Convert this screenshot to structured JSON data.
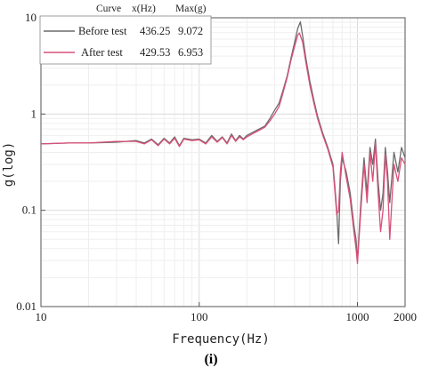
{
  "caption": "(i)",
  "chart_data": {
    "type": "line",
    "title": "",
    "xlabel": "Frequency(Hz)",
    "ylabel": "g(log)",
    "xscale": "log",
    "yscale": "log",
    "xlim": [
      10,
      2000
    ],
    "ylim": [
      0.01,
      10
    ],
    "grid": true,
    "x_ticks": [
      10,
      100,
      1000,
      2000
    ],
    "x_tick_labels": [
      "10",
      "100",
      "1000",
      "2000"
    ],
    "y_ticks": [
      0.01,
      0.1,
      1,
      10
    ],
    "y_tick_labels": [
      "0.01",
      "0.1",
      "1",
      "10"
    ],
    "legend": {
      "placement": "top-left",
      "header": [
        "Curve",
        "x(Hz)",
        "Max(g)"
      ],
      "entries": [
        {
          "label": "Before test",
          "x": "436.25",
          "max": "9.072"
        },
        {
          "label": "After test",
          "x": "429.53",
          "max": "6.953"
        }
      ]
    },
    "series": [
      {
        "name": "Before test",
        "color": "#6b6b6b",
        "x": [
          10,
          15,
          20,
          30,
          40,
          45,
          50,
          55,
          60,
          65,
          70,
          75,
          80,
          90,
          100,
          110,
          120,
          130,
          140,
          150,
          160,
          170,
          180,
          190,
          200,
          220,
          240,
          260,
          280,
          300,
          320,
          340,
          360,
          380,
          400,
          420,
          436,
          450,
          470,
          500,
          530,
          560,
          600,
          650,
          700,
          720,
          740,
          760,
          780,
          800,
          850,
          900,
          950,
          980,
          1000,
          1050,
          1100,
          1150,
          1200,
          1250,
          1300,
          1350,
          1400,
          1450,
          1500,
          1550,
          1600,
          1700,
          1800,
          1900,
          2000
        ],
        "y": [
          0.49,
          0.5,
          0.5,
          0.51,
          0.53,
          0.5,
          0.55,
          0.48,
          0.56,
          0.5,
          0.58,
          0.47,
          0.56,
          0.54,
          0.55,
          0.5,
          0.6,
          0.52,
          0.58,
          0.5,
          0.62,
          0.53,
          0.6,
          0.55,
          0.6,
          0.65,
          0.7,
          0.75,
          0.9,
          1.1,
          1.3,
          1.8,
          2.5,
          3.8,
          5.5,
          7.8,
          9.07,
          6.5,
          4.0,
          2.2,
          1.4,
          0.95,
          0.65,
          0.45,
          0.3,
          0.18,
          0.1,
          0.045,
          0.2,
          0.35,
          0.25,
          0.15,
          0.07,
          0.05,
          0.03,
          0.12,
          0.35,
          0.15,
          0.45,
          0.3,
          0.55,
          0.2,
          0.1,
          0.15,
          0.45,
          0.25,
          0.12,
          0.4,
          0.25,
          0.45,
          0.35
        ]
      },
      {
        "name": "After test",
        "color": "#d9507a",
        "x": [
          10,
          15,
          20,
          30,
          40,
          45,
          50,
          55,
          60,
          65,
          70,
          75,
          80,
          90,
          100,
          110,
          120,
          130,
          140,
          150,
          160,
          170,
          180,
          190,
          200,
          220,
          240,
          260,
          280,
          300,
          320,
          340,
          360,
          380,
          400,
          420,
          430,
          450,
          470,
          500,
          530,
          560,
          600,
          650,
          700,
          720,
          740,
          760,
          780,
          800,
          850,
          900,
          950,
          980,
          1000,
          1050,
          1100,
          1150,
          1200,
          1250,
          1300,
          1350,
          1400,
          1450,
          1500,
          1550,
          1600,
          1700,
          1800,
          1900,
          2000
        ],
        "y": [
          0.49,
          0.5,
          0.5,
          0.52,
          0.52,
          0.49,
          0.54,
          0.47,
          0.55,
          0.49,
          0.56,
          0.46,
          0.55,
          0.53,
          0.54,
          0.49,
          0.58,
          0.51,
          0.57,
          0.49,
          0.6,
          0.52,
          0.58,
          0.54,
          0.58,
          0.63,
          0.68,
          0.73,
          0.85,
          1.0,
          1.2,
          1.7,
          2.4,
          3.6,
          5.0,
          6.6,
          6.95,
          5.6,
          3.6,
          2.0,
          1.3,
          0.9,
          0.62,
          0.43,
          0.28,
          0.16,
          0.09,
          0.1,
          0.25,
          0.4,
          0.22,
          0.13,
          0.06,
          0.04,
          0.028,
          0.1,
          0.3,
          0.12,
          0.4,
          0.2,
          0.5,
          0.15,
          0.06,
          0.1,
          0.38,
          0.2,
          0.05,
          0.3,
          0.2,
          0.35,
          0.3
        ]
      }
    ]
  }
}
